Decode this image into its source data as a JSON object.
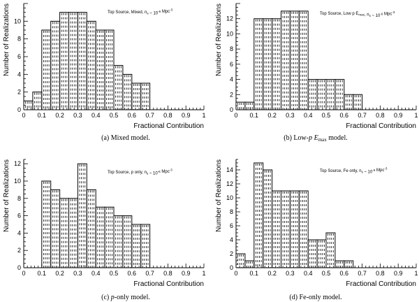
{
  "chart_data": [
    {
      "type": "bar",
      "panel": "a",
      "annotation": "Top Source, Mixed, n_s ~ 10^-6 Mpc^-3",
      "caption": "(a) Mixed model.",
      "xlabel": "Fractional Contribution",
      "ylabel": "Number of Realizations",
      "bin_width": 0.05,
      "x": [
        0.0,
        0.05,
        0.1,
        0.15,
        0.2,
        0.25,
        0.3,
        0.35,
        0.4,
        0.45,
        0.5,
        0.55,
        0.6,
        0.65,
        0.7,
        0.75,
        0.8,
        0.85,
        0.9,
        0.95
      ],
      "values": [
        1,
        2,
        9,
        10,
        11,
        11,
        11,
        10,
        9,
        9,
        5,
        4,
        3,
        3,
        0,
        0,
        0,
        0,
        0,
        0
      ],
      "xlim": [
        0,
        1
      ],
      "ylim": [
        0,
        12
      ],
      "xticks": [
        "0",
        "0.1",
        "0.2",
        "0.3",
        "0.4",
        "0.5",
        "0.6",
        "0.7",
        "0.8",
        "0.9",
        "1"
      ],
      "yticks": [
        "0",
        "2",
        "4",
        "6",
        "8",
        "10"
      ]
    },
    {
      "type": "bar",
      "panel": "b",
      "annotation": "Top Source, Low p E_max, n_s ~ 10^-6 Mpc^-3",
      "caption_parts": [
        "(b) Low-",
        "p",
        " ",
        "E",
        "max",
        " model."
      ],
      "xlabel": "Fractional Contribution",
      "ylabel": "Number of Realizations",
      "bin_width": 0.05,
      "x": [
        0.0,
        0.05,
        0.1,
        0.15,
        0.2,
        0.25,
        0.3,
        0.35,
        0.4,
        0.45,
        0.5,
        0.55,
        0.6,
        0.65,
        0.7,
        0.75,
        0.8,
        0.85,
        0.9,
        0.95
      ],
      "values": [
        1,
        1,
        12,
        12,
        12,
        13,
        13,
        13,
        4,
        4,
        4,
        4,
        2,
        2,
        0,
        0,
        0,
        0,
        0,
        0
      ],
      "xlim": [
        0,
        1
      ],
      "ylim": [
        0,
        14
      ],
      "xticks": [
        "0",
        "0.1",
        "0.2",
        "0.3",
        "0.4",
        "0.5",
        "0.6",
        "0.7",
        "0.8",
        "0.9",
        "1"
      ],
      "yticks": [
        "0",
        "2",
        "4",
        "6",
        "8",
        "10",
        "12"
      ]
    },
    {
      "type": "bar",
      "panel": "c",
      "annotation": "Top Source, p only, n_s ~ 10^-6 Mpc^-3",
      "caption_parts": [
        "(c) ",
        "p",
        "-only model."
      ],
      "xlabel": "Fractional Contribution",
      "ylabel": "Number of Realizations",
      "bin_width": 0.05,
      "x": [
        0.0,
        0.05,
        0.1,
        0.15,
        0.2,
        0.25,
        0.3,
        0.35,
        0.4,
        0.45,
        0.5,
        0.55,
        0.6,
        0.65,
        0.7,
        0.75,
        0.8,
        0.85,
        0.9,
        0.95
      ],
      "values": [
        0,
        0,
        10,
        9,
        8,
        8,
        12,
        9,
        7,
        7,
        6,
        6,
        5,
        5,
        0,
        0,
        0,
        0,
        0,
        0
      ],
      "xlim": [
        0,
        1
      ],
      "ylim": [
        0,
        12.5
      ],
      "xticks": [
        "0",
        "0.1",
        "0.2",
        "0.3",
        "0.4",
        "0.5",
        "0.6",
        "0.7",
        "0.8",
        "0.9",
        "1"
      ],
      "yticks": [
        "0",
        "2",
        "4",
        "6",
        "8",
        "10",
        "12"
      ]
    },
    {
      "type": "bar",
      "panel": "d",
      "annotation": "Top Source, Fe only, n_s ~ 10^-6 Mpc^-3",
      "caption": "(d) Fe-only model.",
      "xlabel": "Fractional Contribution",
      "ylabel": "Number of Realizations",
      "bin_width": 0.05,
      "x": [
        0.0,
        0.05,
        0.1,
        0.15,
        0.2,
        0.25,
        0.3,
        0.35,
        0.4,
        0.45,
        0.5,
        0.55,
        0.6,
        0.65,
        0.7,
        0.75,
        0.8,
        0.85,
        0.9,
        0.95
      ],
      "values": [
        2,
        1,
        15,
        14,
        11,
        11,
        11,
        11,
        4,
        4,
        5,
        1,
        1,
        0,
        0,
        0,
        0,
        0,
        0,
        0
      ],
      "xlim": [
        0,
        1
      ],
      "ylim": [
        0,
        15.5
      ],
      "xticks": [
        "0",
        "0.1",
        "0.2",
        "0.3",
        "0.4",
        "0.5",
        "0.6",
        "0.7",
        "0.8",
        "0.9",
        "1"
      ],
      "yticks": [
        "0",
        "2",
        "4",
        "6",
        "8",
        "10",
        "12",
        "14"
      ]
    }
  ]
}
